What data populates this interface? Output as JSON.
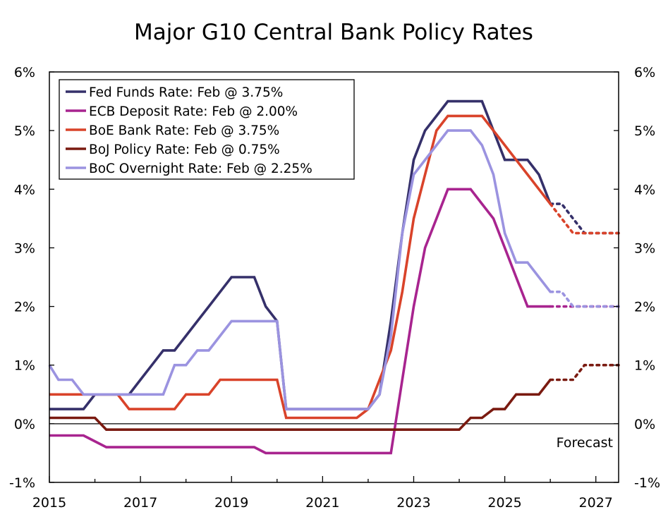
{
  "chart_data": {
    "type": "line",
    "title": "Major G10 Central Bank Policy Rates",
    "xlabel": "",
    "ylabel": "",
    "xlim": [
      2015.0,
      2027.5
    ],
    "ylim": [
      -1,
      6
    ],
    "y_ticks": [
      -1,
      0,
      1,
      2,
      3,
      4,
      5,
      6
    ],
    "y_tick_labels": [
      "-1%",
      "0%",
      "1%",
      "2%",
      "3%",
      "4%",
      "5%",
      "6%"
    ],
    "x_ticks": [
      2015,
      2017,
      2019,
      2021,
      2023,
      2025,
      2027
    ],
    "x_tick_labels": [
      "2015",
      "2017",
      "2019",
      "2021",
      "2023",
      "2025",
      "2027"
    ],
    "legend_position": "top-left",
    "annotations": [
      {
        "text": "Forecast",
        "x": 2027.3,
        "y": -0.4
      }
    ],
    "series": [
      {
        "name": "Fed Funds Rate: Feb @ 3.75%",
        "color": "#35306a",
        "actual": [
          [
            2015.0,
            0.25
          ],
          [
            2015.75,
            0.25
          ],
          [
            2016.0,
            0.5
          ],
          [
            2016.75,
            0.5
          ],
          [
            2017.0,
            0.75
          ],
          [
            2017.25,
            1.0
          ],
          [
            2017.5,
            1.25
          ],
          [
            2017.75,
            1.25
          ],
          [
            2018.0,
            1.5
          ],
          [
            2018.25,
            1.75
          ],
          [
            2018.5,
            2.0
          ],
          [
            2018.75,
            2.25
          ],
          [
            2019.0,
            2.5
          ],
          [
            2019.5,
            2.5
          ],
          [
            2019.75,
            2.0
          ],
          [
            2020.0,
            1.75
          ],
          [
            2020.2,
            0.25
          ],
          [
            2022.0,
            0.25
          ],
          [
            2022.25,
            0.5
          ],
          [
            2022.5,
            1.75
          ],
          [
            2022.75,
            3.25
          ],
          [
            2023.0,
            4.5
          ],
          [
            2023.25,
            5.0
          ],
          [
            2023.5,
            5.25
          ],
          [
            2023.75,
            5.5
          ],
          [
            2024.5,
            5.5
          ],
          [
            2024.75,
            5.0
          ],
          [
            2025.0,
            4.5
          ],
          [
            2025.5,
            4.5
          ],
          [
            2025.75,
            4.25
          ],
          [
            2026.0,
            3.75
          ]
        ],
        "forecast": [
          [
            2026.0,
            3.75
          ],
          [
            2026.25,
            3.75
          ],
          [
            2026.5,
            3.5
          ],
          [
            2026.75,
            3.25
          ],
          [
            2027.5,
            3.25
          ]
        ]
      },
      {
        "name": "ECB Deposit Rate: Feb @ 2.00%",
        "color": "#a8248f",
        "actual": [
          [
            2015.0,
            -0.2
          ],
          [
            2015.75,
            -0.2
          ],
          [
            2016.25,
            -0.4
          ],
          [
            2019.5,
            -0.4
          ],
          [
            2019.75,
            -0.5
          ],
          [
            2022.5,
            -0.5
          ],
          [
            2022.75,
            0.75
          ],
          [
            2023.0,
            2.0
          ],
          [
            2023.25,
            3.0
          ],
          [
            2023.5,
            3.5
          ],
          [
            2023.75,
            4.0
          ],
          [
            2024.25,
            4.0
          ],
          [
            2024.5,
            3.75
          ],
          [
            2024.75,
            3.5
          ],
          [
            2025.0,
            3.0
          ],
          [
            2025.25,
            2.5
          ],
          [
            2025.5,
            2.0
          ],
          [
            2026.0,
            2.0
          ]
        ],
        "forecast": [
          [
            2026.0,
            2.0
          ],
          [
            2027.5,
            2.0
          ]
        ]
      },
      {
        "name": "BoE Bank Rate: Feb @ 3.75%",
        "color": "#d9432a",
        "actual": [
          [
            2015.0,
            0.5
          ],
          [
            2016.5,
            0.5
          ],
          [
            2016.75,
            0.25
          ],
          [
            2017.75,
            0.25
          ],
          [
            2018.0,
            0.5
          ],
          [
            2018.5,
            0.5
          ],
          [
            2018.75,
            0.75
          ],
          [
            2020.0,
            0.75
          ],
          [
            2020.2,
            0.1
          ],
          [
            2021.75,
            0.1
          ],
          [
            2022.0,
            0.25
          ],
          [
            2022.25,
            0.75
          ],
          [
            2022.5,
            1.25
          ],
          [
            2022.75,
            2.25
          ],
          [
            2023.0,
            3.5
          ],
          [
            2023.25,
            4.25
          ],
          [
            2023.5,
            5.0
          ],
          [
            2023.75,
            5.25
          ],
          [
            2024.5,
            5.25
          ],
          [
            2024.75,
            5.0
          ],
          [
            2025.0,
            4.75
          ],
          [
            2025.25,
            4.5
          ],
          [
            2025.5,
            4.25
          ],
          [
            2025.75,
            4.0
          ],
          [
            2026.0,
            3.75
          ]
        ],
        "forecast": [
          [
            2026.0,
            3.75
          ],
          [
            2026.25,
            3.5
          ],
          [
            2026.5,
            3.25
          ],
          [
            2027.5,
            3.25
          ]
        ]
      },
      {
        "name": "BoJ Policy Rate: Feb @ 0.75%",
        "color": "#7a1a10",
        "actual": [
          [
            2015.0,
            0.1
          ],
          [
            2016.0,
            0.1
          ],
          [
            2016.25,
            -0.1
          ],
          [
            2024.0,
            -0.1
          ],
          [
            2024.25,
            0.1
          ],
          [
            2024.5,
            0.1
          ],
          [
            2024.75,
            0.25
          ],
          [
            2025.0,
            0.25
          ],
          [
            2025.25,
            0.5
          ],
          [
            2025.75,
            0.5
          ],
          [
            2026.0,
            0.75
          ]
        ],
        "forecast": [
          [
            2026.0,
            0.75
          ],
          [
            2026.5,
            0.75
          ],
          [
            2026.75,
            1.0
          ],
          [
            2027.5,
            1.0
          ]
        ]
      },
      {
        "name": "BoC Overnight Rate: Feb @ 2.25%",
        "color": "#9b93e0",
        "actual": [
          [
            2015.0,
            1.0
          ],
          [
            2015.2,
            0.75
          ],
          [
            2015.5,
            0.75
          ],
          [
            2015.75,
            0.5
          ],
          [
            2017.5,
            0.5
          ],
          [
            2017.75,
            1.0
          ],
          [
            2018.0,
            1.0
          ],
          [
            2018.25,
            1.25
          ],
          [
            2018.5,
            1.25
          ],
          [
            2018.75,
            1.5
          ],
          [
            2019.0,
            1.75
          ],
          [
            2020.0,
            1.75
          ],
          [
            2020.2,
            0.25
          ],
          [
            2022.0,
            0.25
          ],
          [
            2022.25,
            0.5
          ],
          [
            2022.5,
            1.5
          ],
          [
            2022.75,
            3.25
          ],
          [
            2023.0,
            4.25
          ],
          [
            2023.5,
            4.75
          ],
          [
            2023.75,
            5.0
          ],
          [
            2024.25,
            5.0
          ],
          [
            2024.5,
            4.75
          ],
          [
            2024.75,
            4.25
          ],
          [
            2025.0,
            3.25
          ],
          [
            2025.25,
            2.75
          ],
          [
            2025.5,
            2.75
          ],
          [
            2025.75,
            2.5
          ],
          [
            2026.0,
            2.25
          ]
        ],
        "forecast": [
          [
            2026.0,
            2.25
          ],
          [
            2026.25,
            2.25
          ],
          [
            2026.5,
            2.0
          ],
          [
            2027.5,
            2.0
          ]
        ]
      }
    ]
  }
}
